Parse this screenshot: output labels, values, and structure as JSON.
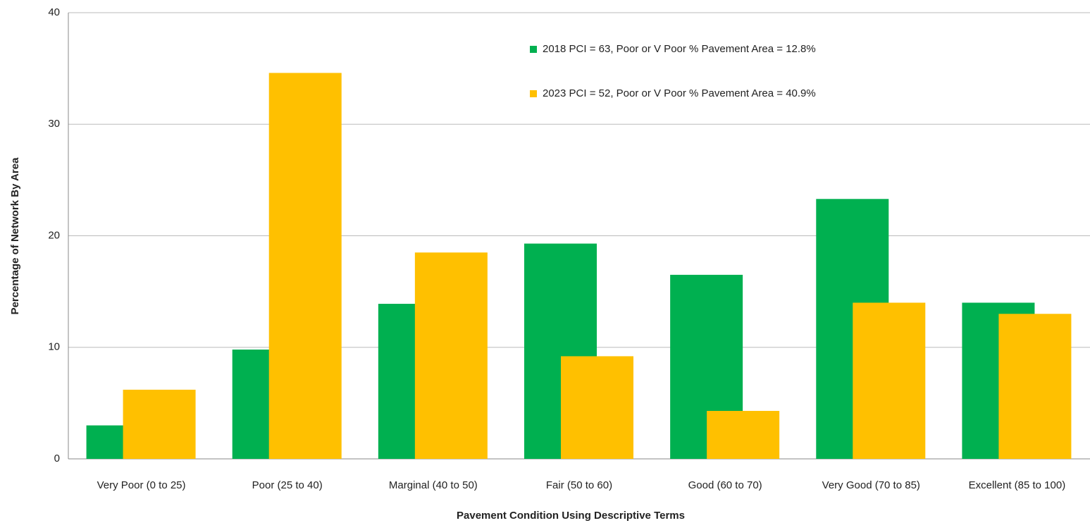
{
  "chart_data": {
    "type": "bar",
    "x_label": "Pavement Condition Using Descriptive Terms",
    "y_label": "Percentage of Network By Area",
    "categories": [
      "Very Poor (0 to 25)",
      "Poor (25 to 40)",
      "Marginal (40 to 50)",
      "Fair (50 to 60)",
      "Good (60 to 70)",
      "Very Good (70 to 85)",
      "Excellent (85 to 100)"
    ],
    "series": [
      {
        "name": "2018 PCI = 63, Poor or V Poor % Pavement Area = 12.8%",
        "color": "#00b050",
        "values": [
          3.0,
          9.8,
          13.9,
          19.3,
          16.5,
          23.3,
          14.0
        ]
      },
      {
        "name": "2023 PCI = 52, Poor or V Poor % Pavement Area = 40.9%",
        "color": "#ffc000",
        "values": [
          6.2,
          34.6,
          18.5,
          9.2,
          4.3,
          14.0,
          13.0
        ]
      }
    ],
    "ylim": [
      0,
      40
    ],
    "yticks": [
      0,
      10,
      20,
      30,
      40
    ],
    "grid": true,
    "legend": "top"
  }
}
